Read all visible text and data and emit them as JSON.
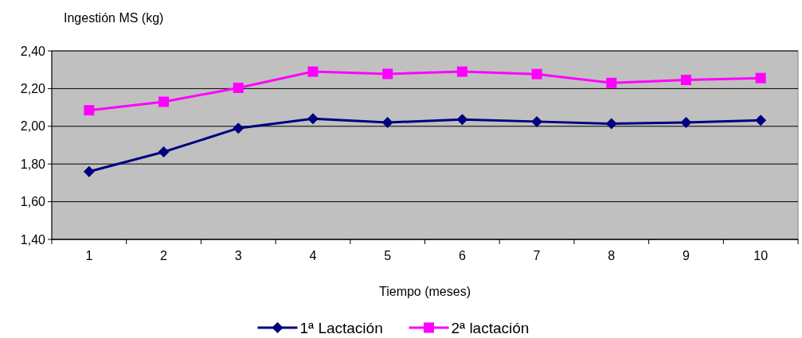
{
  "chart_data": {
    "type": "line",
    "xlabel": "Tiempo (meses)",
    "ylabel": "Ingestión MS (kg)",
    "categories": [
      "1",
      "2",
      "3",
      "4",
      "5",
      "6",
      "7",
      "8",
      "9",
      "10"
    ],
    "series": [
      {
        "name": "1ª Lactación",
        "color": "#000080",
        "marker": "diamond",
        "values": [
          1.76,
          1.864,
          1.99,
          2.04,
          2.02,
          2.036,
          2.025,
          2.014,
          2.02,
          2.032
        ]
      },
      {
        "name": "2ª lactación",
        "color": "#ff00ff",
        "marker": "square",
        "values": [
          2.085,
          2.13,
          2.204,
          2.29,
          2.278,
          2.29,
          2.277,
          2.23,
          2.246,
          2.256
        ]
      }
    ],
    "ylim": [
      1.4,
      2.4
    ],
    "yticks": [
      {
        "value": 1.4,
        "label": "1,40"
      },
      {
        "value": 1.6,
        "label": "1,60"
      },
      {
        "value": 1.8,
        "label": "1,80"
      },
      {
        "value": 2.0,
        "label": "2,00"
      },
      {
        "value": 2.2,
        "label": "2,20"
      },
      {
        "value": 2.4,
        "label": "2,40"
      }
    ],
    "grid": "y",
    "legend": "bottom"
  }
}
